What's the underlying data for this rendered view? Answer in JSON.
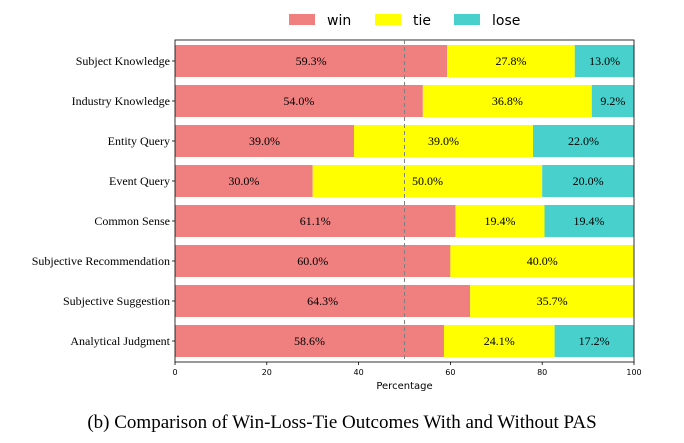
{
  "caption": "(b) Comparison of Win-Loss-Tie Outcomes With and Without PAS",
  "chart_data": {
    "type": "bar",
    "orientation": "horizontal",
    "stacked": true,
    "categories": [
      "Subject Knowledge",
      "Industry Knowledge",
      "Entity Query",
      "Event Query",
      "Common Sense",
      "Subjective Recommendation",
      "Subjective Suggestion",
      "Analytical Judgment"
    ],
    "series": [
      {
        "name": "win",
        "color": "#f08080",
        "values": [
          59.3,
          54.0,
          39.0,
          30.0,
          61.1,
          60.0,
          64.3,
          58.6
        ]
      },
      {
        "name": "tie",
        "color": "#ffff00",
        "values": [
          27.8,
          36.8,
          39.0,
          50.0,
          19.4,
          40.0,
          35.7,
          24.1
        ]
      },
      {
        "name": "lose",
        "color": "#48d1cc",
        "values": [
          13.0,
          9.2,
          22.0,
          20.0,
          19.4,
          0,
          0,
          17.2
        ]
      }
    ],
    "value_labels": [
      [
        "59.3%",
        "27.8%",
        "13.0%"
      ],
      [
        "54.0%",
        "36.8%",
        "9.2%"
      ],
      [
        "39.0%",
        "39.0%",
        "22.0%"
      ],
      [
        "30.0%",
        "50.0%",
        "20.0%"
      ],
      [
        "61.1%",
        "19.4%",
        "19.4%"
      ],
      [
        "60.0%",
        "40.0%",
        ""
      ],
      [
        "64.3%",
        "35.7%",
        ""
      ],
      [
        "58.6%",
        "24.1%",
        "17.2%"
      ]
    ],
    "xlabel": "Percentage",
    "ylabel": "",
    "xlim": [
      0,
      100
    ],
    "xticks": [
      "0",
      "20",
      "40",
      "60",
      "80",
      "100"
    ],
    "reference_line": {
      "x": 50,
      "style": "dashed"
    },
    "legend_placement": "top-center",
    "grid": false
  }
}
